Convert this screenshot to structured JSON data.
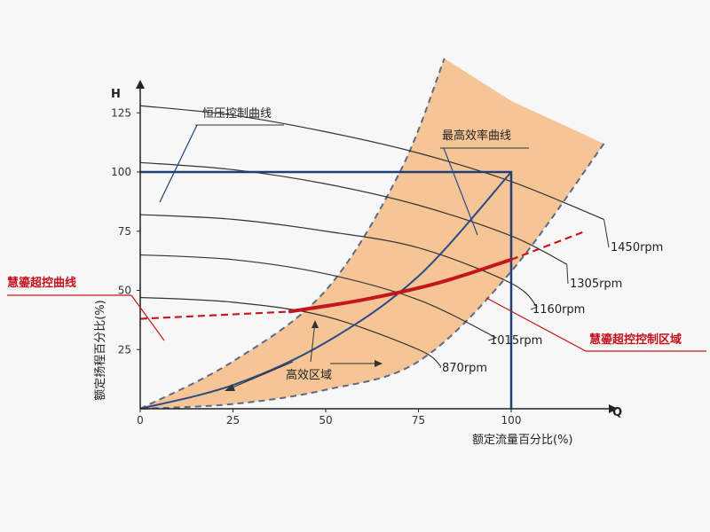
{
  "chart_data": {
    "type": "line",
    "title": "",
    "xlabel": "额定流量百分比(%)",
    "ylabel": "额定扬程百分比(%)",
    "x_axis_letter": "Q",
    "y_axis_letter": "H",
    "xlim": [
      0,
      125
    ],
    "ylim": [
      0,
      140
    ],
    "x_ticks": [
      "0",
      "25",
      "50",
      "75",
      "100"
    ],
    "y_ticks": [
      "25",
      "50",
      "75",
      "100",
      "125"
    ],
    "grid": false,
    "series": [
      {
        "name": "1450rpm",
        "x": [
          0,
          25,
          50,
          75,
          100,
          125
        ],
        "y": [
          128,
          124,
          117,
          108,
          96,
          80
        ]
      },
      {
        "name": "1305rpm",
        "x": [
          0,
          25,
          50,
          75,
          100,
          115
        ],
        "y": [
          104,
          101,
          95,
          86,
          73,
          61
        ]
      },
      {
        "name": "1160rpm",
        "x": [
          0,
          25,
          50,
          75,
          100,
          107
        ],
        "y": [
          82,
          80,
          75,
          68,
          53,
          43
        ]
      },
      {
        "name": "1015rpm",
        "x": [
          0,
          25,
          50,
          75,
          96
        ],
        "y": [
          65,
          63,
          57,
          46,
          30
        ]
      },
      {
        "name": "870rpm",
        "x": [
          0,
          25,
          50,
          75,
          81
        ],
        "y": [
          47,
          45,
          39,
          25,
          18
        ]
      }
    ],
    "best_efficiency_curve": {
      "x": [
        0,
        25,
        50,
        75,
        100
      ],
      "y": [
        0,
        10,
        28,
        56,
        100
      ]
    },
    "constant_pressure_line": {
      "x": [
        0,
        100,
        100
      ],
      "y": [
        100,
        100,
        0
      ]
    },
    "super_control_curve": {
      "x": [
        0,
        40,
        60,
        80,
        100,
        120
      ],
      "y": [
        38,
        41,
        46,
        53,
        63,
        75
      ]
    },
    "high_efficiency_region": {
      "upper_x": [
        0,
        25,
        50,
        70,
        82
      ],
      "upper_y": [
        0,
        20,
        50,
        100,
        148
      ],
      "top_x": [
        82,
        100,
        125
      ],
      "top_y": [
        148,
        130,
        112
      ],
      "lower_x": [
        125,
        100,
        75,
        50,
        25,
        0
      ],
      "lower_y": [
        112,
        58,
        20,
        8,
        2,
        0
      ],
      "color": "#f4bf8a"
    },
    "annotations": {
      "constant_pressure": "恒压控制曲线",
      "best_efficiency": "最高效率曲线",
      "super_control": "慧鎏超控曲线",
      "super_control_region": "慧鎏超控控制区域",
      "high_efficiency_region": "高效区域"
    },
    "colors": {
      "axis": "#222222",
      "pump_curves": "#333333",
      "constant_pressure": "#1f3f7a",
      "best_efficiency": "#2b4a86",
      "super_control": "#c4161c"
    }
  }
}
